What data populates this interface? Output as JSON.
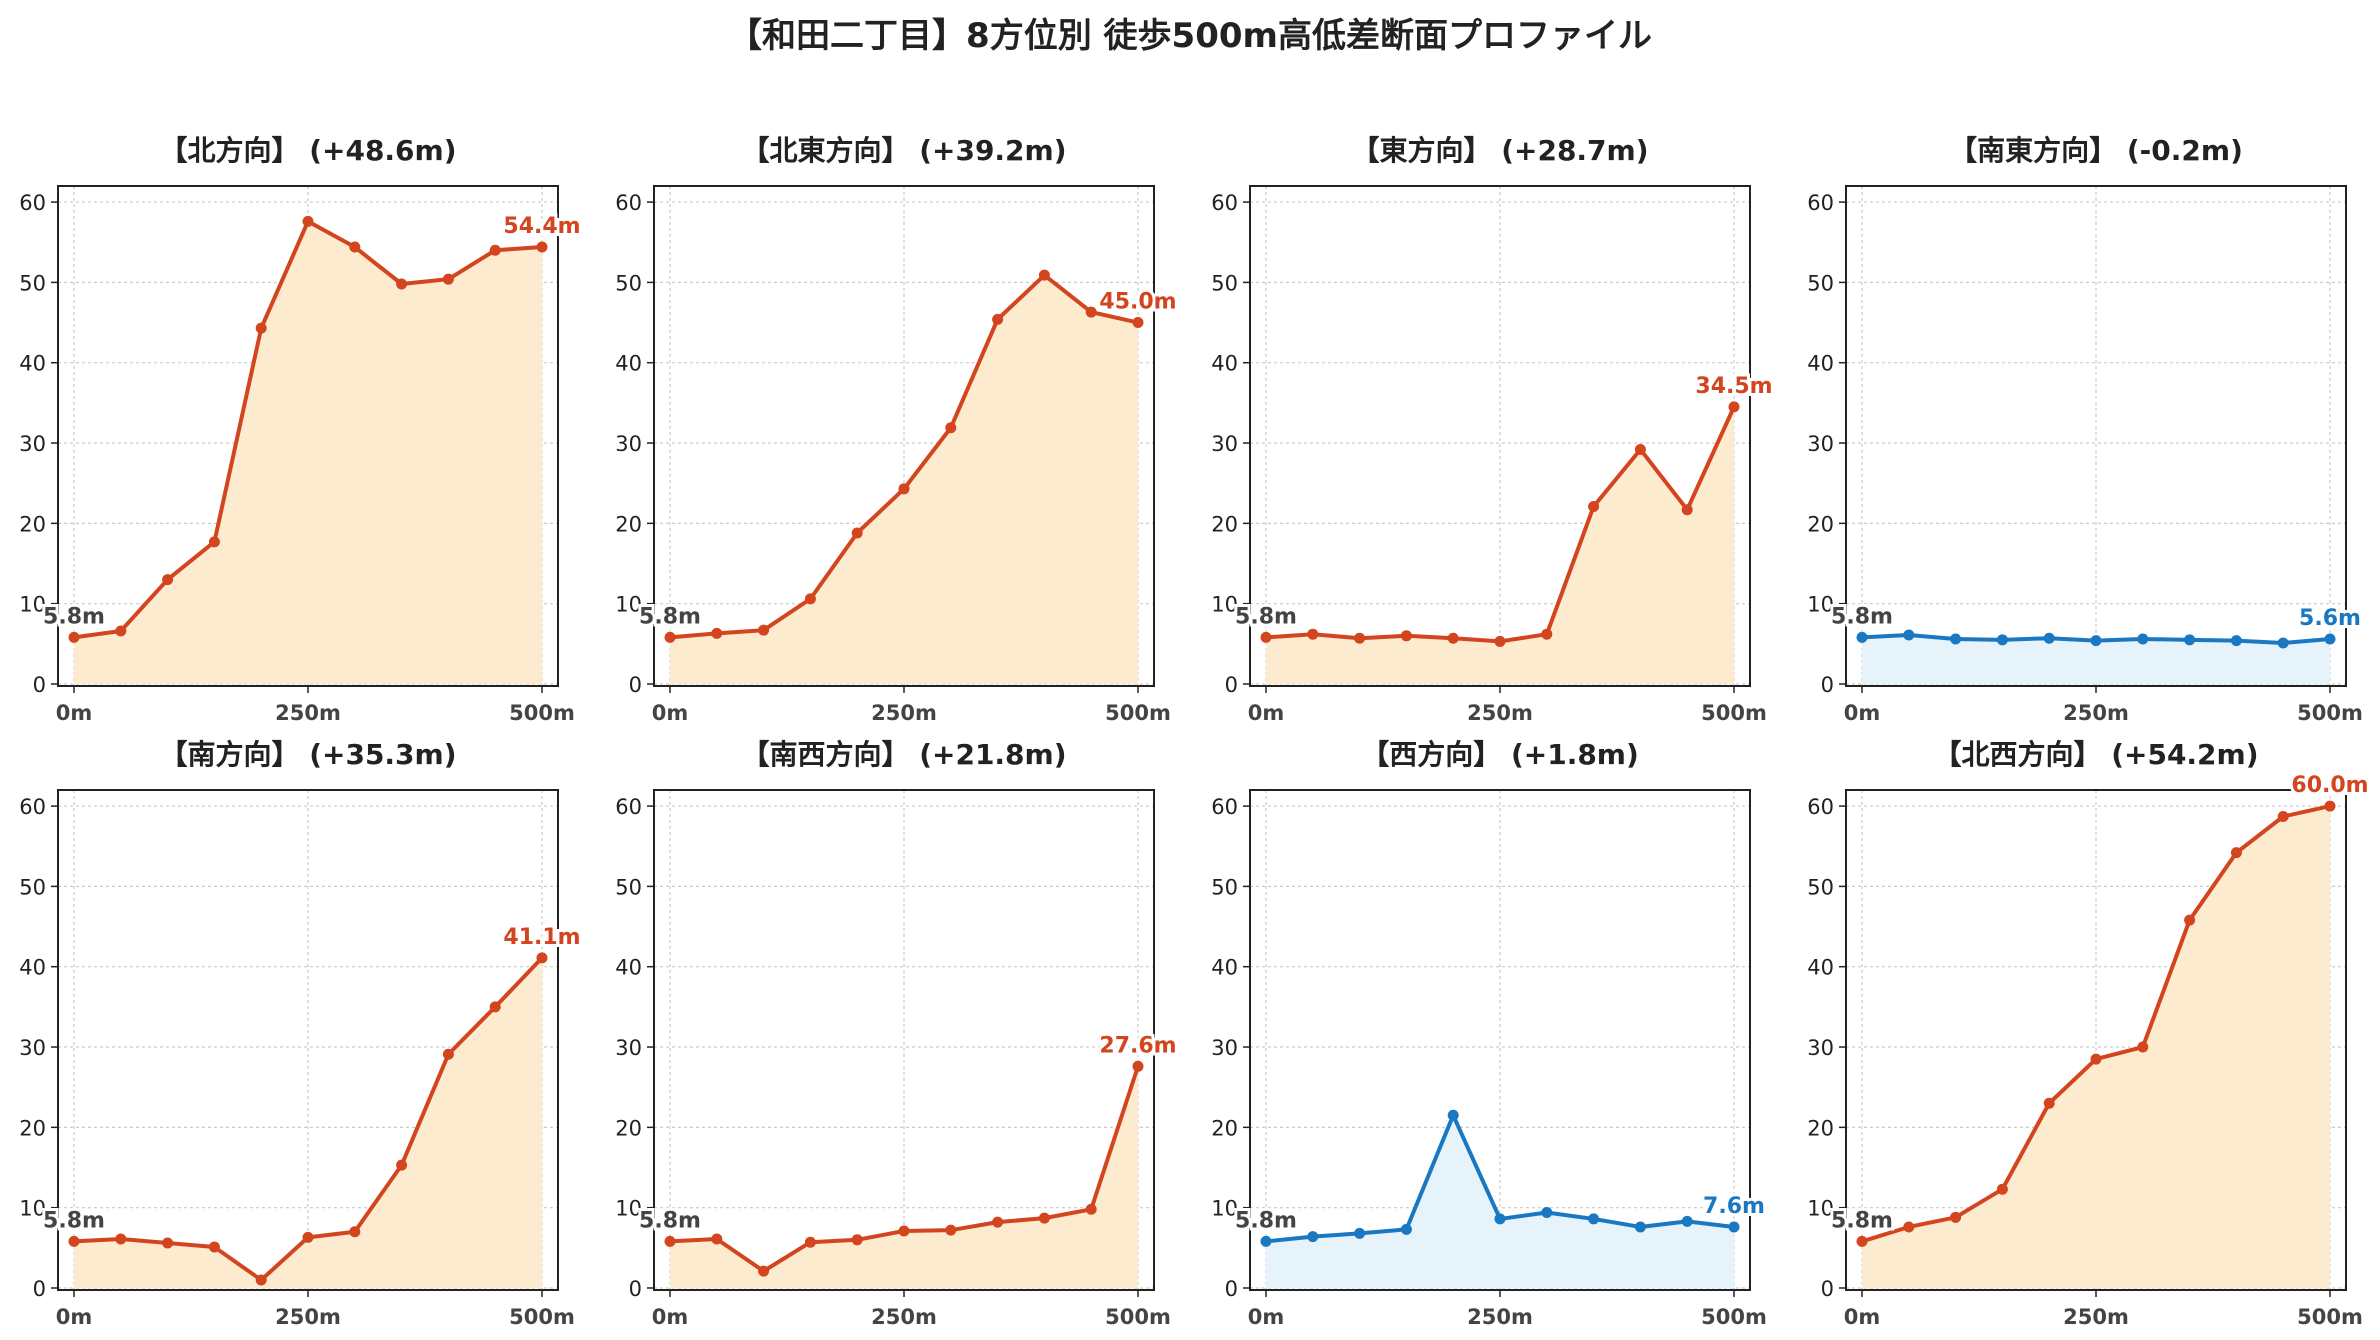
{
  "suptitle": "【和田二丁目】8方位別 徒歩500m高低差断面プロファイル",
  "colors": {
    "up_line": "#d2451e",
    "up_fill": "#fdebd0",
    "flat_line": "#1a78c2",
    "flat_fill": "#e6f3fb",
    "start_label": "#444444",
    "grid": "#cccccc",
    "axis": "#222222"
  },
  "chart_data": [
    {
      "type": "area",
      "title": "【北方向】 (+48.6m)",
      "style": "up",
      "x": [
        0,
        50,
        100,
        150,
        200,
        250,
        300,
        350,
        400,
        450,
        500
      ],
      "y": [
        5.8,
        6.6,
        13.0,
        17.7,
        44.3,
        57.6,
        54.4,
        49.8,
        50.4,
        54.0,
        54.4
      ],
      "start_label": "5.8m",
      "end_label": "54.4m",
      "xticks": [
        "0m",
        "250m",
        "500m"
      ],
      "yticks": [
        "0",
        "10",
        "20",
        "30",
        "40",
        "50",
        "60"
      ],
      "xlim": [
        0,
        500
      ],
      "ylim": [
        0,
        62
      ],
      "grid": true
    },
    {
      "type": "area",
      "title": "【北東方向】 (+39.2m)",
      "style": "up",
      "x": [
        0,
        50,
        100,
        150,
        200,
        250,
        300,
        350,
        400,
        450,
        500
      ],
      "y": [
        5.8,
        6.3,
        6.7,
        10.6,
        18.8,
        24.3,
        31.9,
        45.4,
        50.9,
        46.3,
        45.0
      ],
      "start_label": "5.8m",
      "end_label": "45.0m",
      "xticks": [
        "0m",
        "250m",
        "500m"
      ],
      "yticks": [
        "0",
        "10",
        "20",
        "30",
        "40",
        "50",
        "60"
      ],
      "xlim": [
        0,
        500
      ],
      "ylim": [
        0,
        62
      ],
      "grid": true
    },
    {
      "type": "area",
      "title": "【東方向】 (+28.7m)",
      "style": "up",
      "x": [
        0,
        50,
        100,
        150,
        200,
        250,
        300,
        350,
        400,
        450,
        500
      ],
      "y": [
        5.8,
        6.2,
        5.7,
        6.0,
        5.7,
        5.3,
        6.2,
        22.1,
        29.2,
        21.7,
        34.5
      ],
      "start_label": "5.8m",
      "end_label": "34.5m",
      "xticks": [
        "0m",
        "250m",
        "500m"
      ],
      "yticks": [
        "0",
        "10",
        "20",
        "30",
        "40",
        "50",
        "60"
      ],
      "xlim": [
        0,
        500
      ],
      "ylim": [
        0,
        62
      ],
      "grid": true
    },
    {
      "type": "area",
      "title": "【南東方向】 (-0.2m)",
      "style": "flat",
      "x": [
        0,
        50,
        100,
        150,
        200,
        250,
        300,
        350,
        400,
        450,
        500
      ],
      "y": [
        5.8,
        6.1,
        5.6,
        5.5,
        5.7,
        5.4,
        5.6,
        5.5,
        5.4,
        5.1,
        5.6
      ],
      "start_label": "5.8m",
      "end_label": "5.6m",
      "xticks": [
        "0m",
        "250m",
        "500m"
      ],
      "yticks": [
        "0",
        "10",
        "20",
        "30",
        "40",
        "50",
        "60"
      ],
      "xlim": [
        0,
        500
      ],
      "ylim": [
        0,
        62
      ],
      "grid": true
    },
    {
      "type": "area",
      "title": "【南方向】 (+35.3m)",
      "style": "up",
      "x": [
        0,
        50,
        100,
        150,
        200,
        250,
        300,
        350,
        400,
        450,
        500
      ],
      "y": [
        5.8,
        6.1,
        5.6,
        5.1,
        1.0,
        6.3,
        7.0,
        15.3,
        29.1,
        35.0,
        41.1
      ],
      "start_label": "5.8m",
      "end_label": "41.1m",
      "xticks": [
        "0m",
        "250m",
        "500m"
      ],
      "yticks": [
        "0",
        "10",
        "20",
        "30",
        "40",
        "50",
        "60"
      ],
      "xlim": [
        0,
        500
      ],
      "ylim": [
        0,
        62
      ],
      "grid": true
    },
    {
      "type": "area",
      "title": "【南西方向】 (+21.8m)",
      "style": "up",
      "x": [
        0,
        50,
        100,
        150,
        200,
        250,
        300,
        350,
        400,
        450,
        500
      ],
      "y": [
        5.8,
        6.1,
        2.1,
        5.7,
        6.0,
        7.1,
        7.2,
        8.2,
        8.7,
        9.8,
        27.6
      ],
      "start_label": "5.8m",
      "end_label": "27.6m",
      "xticks": [
        "0m",
        "250m",
        "500m"
      ],
      "yticks": [
        "0",
        "10",
        "20",
        "30",
        "40",
        "50",
        "60"
      ],
      "xlim": [
        0,
        500
      ],
      "ylim": [
        0,
        62
      ],
      "grid": true
    },
    {
      "type": "area",
      "title": "【西方向】 (+1.8m)",
      "style": "flat",
      "x": [
        0,
        50,
        100,
        150,
        200,
        250,
        300,
        350,
        400,
        450,
        500
      ],
      "y": [
        5.8,
        6.4,
        6.8,
        7.3,
        21.5,
        8.6,
        9.4,
        8.6,
        7.6,
        8.3,
        7.6
      ],
      "start_label": "5.8m",
      "end_label": "7.6m",
      "xticks": [
        "0m",
        "250m",
        "500m"
      ],
      "yticks": [
        "0",
        "10",
        "20",
        "30",
        "40",
        "50",
        "60"
      ],
      "xlim": [
        0,
        500
      ],
      "ylim": [
        0,
        62
      ],
      "grid": true
    },
    {
      "type": "area",
      "title": "【北西方向】 (+54.2m)",
      "style": "up",
      "x": [
        0,
        50,
        100,
        150,
        200,
        250,
        300,
        350,
        400,
        450,
        500
      ],
      "y": [
        5.8,
        7.6,
        8.8,
        12.3,
        23.0,
        28.5,
        30.0,
        45.8,
        54.2,
        58.7,
        60.0
      ],
      "start_label": "5.8m",
      "end_label": "60.0m",
      "xticks": [
        "0m",
        "250m",
        "500m"
      ],
      "yticks": [
        "0",
        "10",
        "20",
        "30",
        "40",
        "50",
        "60"
      ],
      "xlim": [
        0,
        500
      ],
      "ylim": [
        0,
        62
      ],
      "grid": true
    }
  ]
}
